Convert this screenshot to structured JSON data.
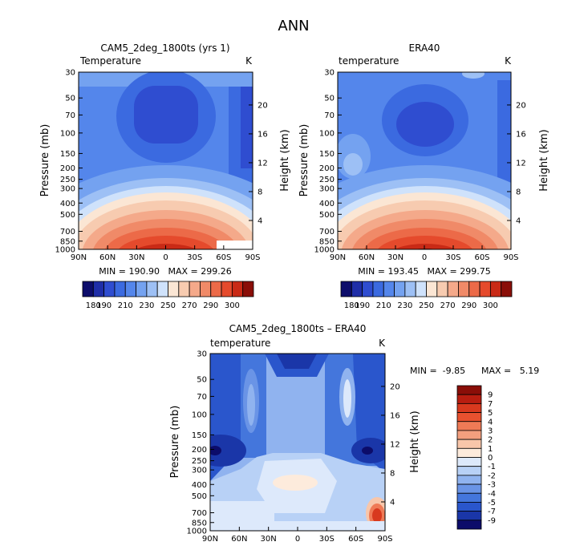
{
  "figure_title": "ANN",
  "chart_data": [
    {
      "type": "heatmap",
      "title": "CAM5_2deg_1800ts (yrs 1)",
      "subtitle_left": "Temperature",
      "subtitle_right": "K",
      "ylabel": "Pressure (mb)",
      "ylabel_right": "Height (km)",
      "x_ticks": [
        "90N",
        "60N",
        "30N",
        "0",
        "30S",
        "60S",
        "90S"
      ],
      "y_ticks": [
        "30",
        "50",
        "70",
        "100",
        "150",
        "200",
        "250",
        "300",
        "400",
        "500",
        "700",
        "850",
        "1000"
      ],
      "height_ticks": [
        "20",
        "16",
        "12",
        "8",
        "4"
      ],
      "stats": "MIN = 190.90   MAX = 299.26",
      "colorbar_labels": [
        "180",
        "190",
        "210",
        "230",
        "250",
        "270",
        "290",
        "300"
      ],
      "colorbar_levels": 16,
      "features": {
        "cold_core_lat": 0,
        "cold_core_pressure_mb": 80,
        "min": 190.9,
        "max": 299.26
      }
    },
    {
      "type": "heatmap",
      "title": "ERA40",
      "subtitle_left": "temperature",
      "subtitle_right": "K",
      "ylabel": "Pressure (mb)",
      "ylabel_right": "Height (km)",
      "x_ticks": [
        "90N",
        "60N",
        "30N",
        "0",
        "30S",
        "60S",
        "90S"
      ],
      "y_ticks": [
        "30",
        "50",
        "70",
        "100",
        "150",
        "200",
        "250",
        "300",
        "400",
        "500",
        "700",
        "850",
        "1000"
      ],
      "height_ticks": [
        "20",
        "16",
        "12",
        "8",
        "4"
      ],
      "stats": "MIN = 193.45   MAX = 299.75",
      "colorbar_labels": [
        "180",
        "190",
        "210",
        "230",
        "250",
        "270",
        "290",
        "300"
      ],
      "colorbar_levels": 16,
      "features": {
        "cold_core_lat": 0,
        "cold_core_pressure_mb": 90,
        "min": 193.45,
        "max": 299.75
      }
    },
    {
      "type": "heatmap",
      "title": "CAM5_2deg_1800ts – ERA40",
      "subtitle_left": "temperature",
      "subtitle_right": "K",
      "ylabel": "Pressure (mb)",
      "ylabel_right": "Height (km)",
      "x_ticks": [
        "90N",
        "60N",
        "30N",
        "0",
        "30S",
        "60S",
        "90S"
      ],
      "y_ticks": [
        "30",
        "50",
        "70",
        "100",
        "150",
        "200",
        "250",
        "300",
        "400",
        "500",
        "700",
        "850",
        "1000"
      ],
      "height_ticks": [
        "20",
        "16",
        "12",
        "8",
        "4"
      ],
      "stats_min": "MIN =  -9.85",
      "stats_max": "MAX =   5.19",
      "colorbar_labels": [
        "9",
        "7",
        "5",
        "4",
        "3",
        "2",
        "1",
        "0",
        "-1",
        "-2",
        "-3",
        "-4",
        "-5",
        "-7",
        "-9"
      ],
      "colorbar_levels": 16,
      "features": {
        "min": -9.85,
        "max": 5.19
      }
    }
  ],
  "colors": {
    "abs_scale": [
      "#0d0d6b",
      "#1f2ea8",
      "#2f4dd0",
      "#3b6ae0",
      "#5486eb",
      "#74a2f0",
      "#9dc0f5",
      "#cfe2fb",
      "#fbe6d4",
      "#f7cbb0",
      "#f4a98a",
      "#f08a68",
      "#ec6a48",
      "#e54a2c",
      "#c92a16",
      "#8a0e08"
    ],
    "diff_scale": [
      "#8a0e08",
      "#b81d10",
      "#d8391e",
      "#e8512f",
      "#ef7a56",
      "#f39f7e",
      "#f8c6aa",
      "#fdebdc",
      "#dde9fb",
      "#b8d1f6",
      "#90b3ef",
      "#6a94e6",
      "#4476dc",
      "#2a56cc",
      "#1a36a8",
      "#0c0c6a"
    ]
  }
}
